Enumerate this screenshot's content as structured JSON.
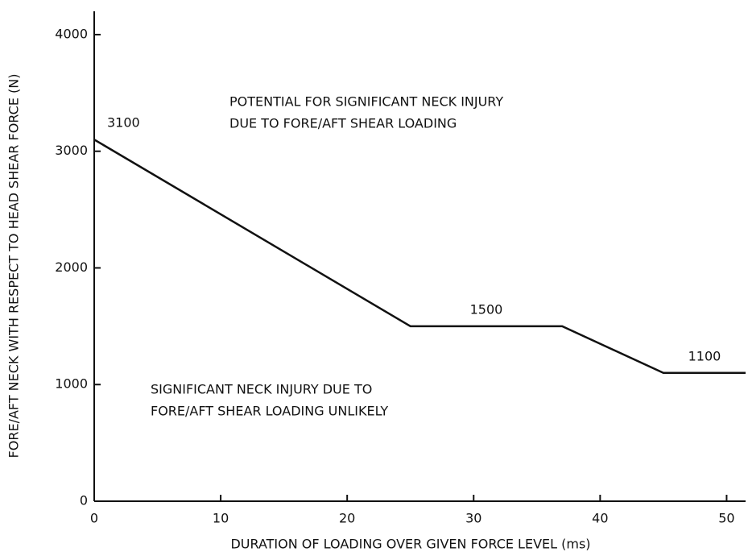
{
  "chart_data": {
    "type": "line",
    "xlabel": "DURATION OF LOADING OVER GIVEN FORCE LEVEL (ms)",
    "ylabel": "FORE/AFT NECK WITH RESPECT TO HEAD SHEAR FORCE (N)",
    "x": [
      0,
      25,
      37,
      45,
      51.5
    ],
    "values": [
      3100,
      1500,
      1500,
      1100,
      1100
    ],
    "value_labels": [
      "3100",
      "1500",
      null,
      null,
      "1100"
    ],
    "color": "#111111",
    "xlim": [
      0,
      51.5
    ],
    "xticks": [
      0,
      10,
      20,
      30,
      40,
      50
    ],
    "ylim": [
      0,
      4200
    ],
    "yticks": [
      0,
      1000,
      2000,
      3000,
      4000
    ],
    "grid": false,
    "annotations": [
      {
        "lines": [
          "POTENTIAL FOR SIGNIFICANT NECK INJURY",
          "DUE TO FORE/AFT SHEAR LOADING"
        ]
      },
      {
        "lines": [
          "SIGNIFICANT NECK INJURY DUE TO",
          "FORE/AFT SHEAR LOADING UNLIKELY"
        ]
      }
    ]
  }
}
